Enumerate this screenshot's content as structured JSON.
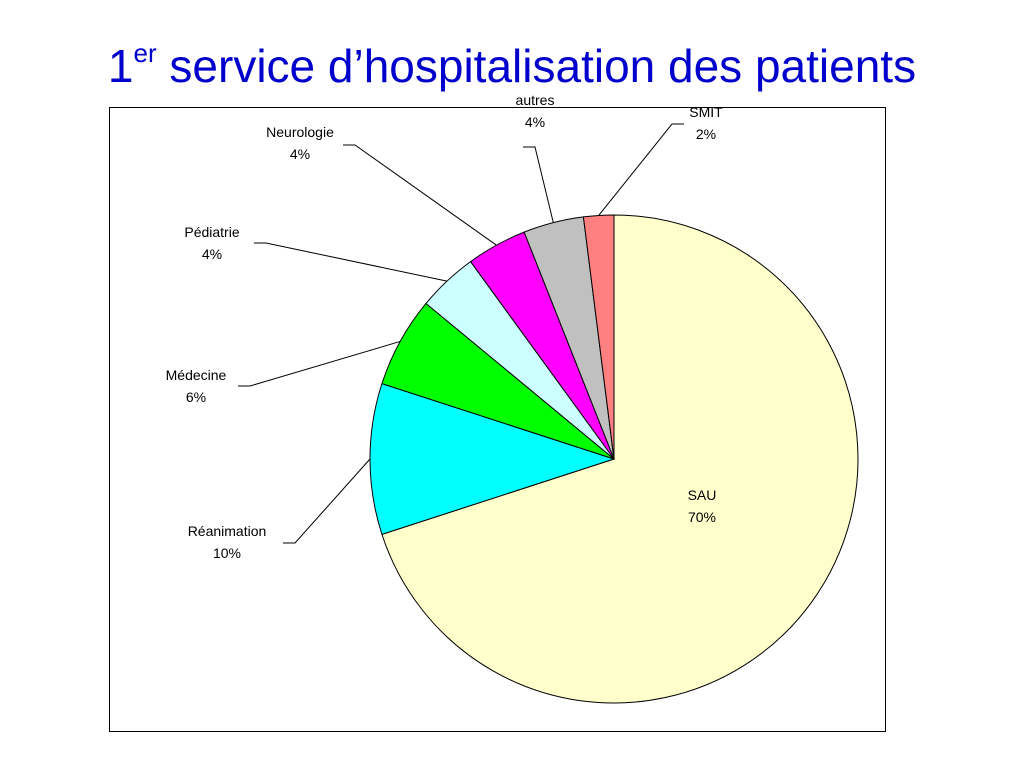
{
  "title": {
    "number": "1",
    "superscript": "er",
    "text": "service d’hospitalisation des patients"
  },
  "chart_data": {
    "type": "pie",
    "title": "",
    "slices": [
      {
        "label": "SAU",
        "value": 70,
        "value_label": "70%",
        "color": "#ffffcc"
      },
      {
        "label": "Réanimation",
        "value": 10,
        "value_label": "10%",
        "color": "#00ffff"
      },
      {
        "label": "Médecine",
        "value": 6,
        "value_label": "6%",
        "color": "#00ff00"
      },
      {
        "label": "Pédiatrie",
        "value": 4,
        "value_label": "4%",
        "color": "#ccffff"
      },
      {
        "label": "Neurologie",
        "value": 4,
        "value_label": "4%",
        "color": "#ff00ff"
      },
      {
        "label": "autres",
        "value": 4,
        "value_label": "4%",
        "color": "#c0c0c0"
      },
      {
        "label": "SMIT",
        "value": 2,
        "value_label": "2%",
        "color": "#ff8080"
      }
    ],
    "start": "12 o'clock",
    "direction": "clockwise",
    "legend": "none"
  }
}
